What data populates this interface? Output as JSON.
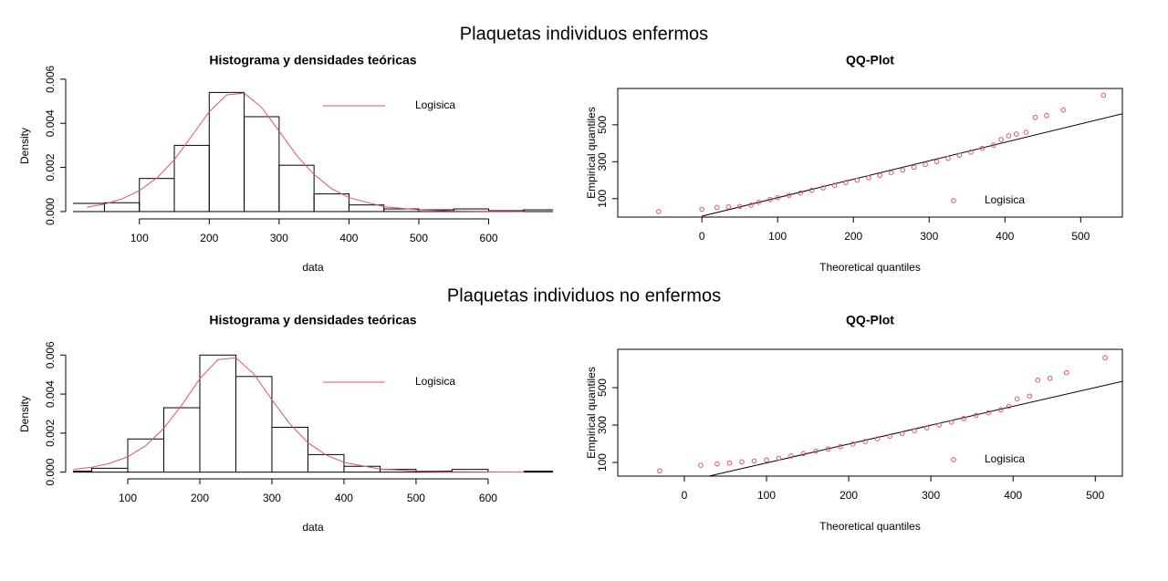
{
  "titles": [
    "Plaquetas individuos enfermos",
    "Plaquetas individuos no enfermos"
  ],
  "chart_data": [
    {
      "type": "histogram",
      "title": "Histograma y densidades teóricas",
      "x_label": "data",
      "y_label": "Density",
      "bins": [
        0,
        50,
        100,
        150,
        200,
        250,
        300,
        350,
        400,
        450,
        500,
        550,
        600,
        650,
        700
      ],
      "values": [
        0.00037,
        0.0004,
        0.0015,
        0.003,
        0.0054,
        0.0043,
        0.0021,
        0.0008,
        0.0003,
        0.00012,
        8e-05,
        0.00012,
        4e-05,
        8e-05
      ],
      "curve": {
        "name": "Logisica",
        "color": "#DF536B",
        "x": [
          25,
          50,
          75,
          100,
          125,
          150,
          175,
          200,
          225,
          250,
          275,
          300,
          325,
          350,
          375,
          400,
          450,
          500,
          550,
          600,
          650
        ],
        "y": [
          0.0002,
          0.00034,
          0.00057,
          0.00095,
          0.00152,
          0.00235,
          0.00343,
          0.00452,
          0.00529,
          0.00537,
          0.00472,
          0.00365,
          0.00255,
          0.00168,
          0.00104,
          0.00063,
          0.00022,
          7.6e-05,
          2.6e-05,
          9e-06,
          3e-06
        ]
      },
      "xlim": [
        5,
        692
      ],
      "xticks": [
        100,
        200,
        300,
        400,
        500,
        600
      ],
      "ylim": [
        -0.00025,
        0.0062
      ],
      "yticks": [
        {
          "value": 0,
          "label": "0.000"
        },
        {
          "value": 0.002,
          "label": "0.002"
        },
        {
          "value": 0.004,
          "label": "0.004"
        },
        {
          "value": 0.006,
          "label": "0.006"
        }
      ]
    },
    {
      "type": "qq",
      "title": "QQ-Plot",
      "x_label": "Theoretical quantiles",
      "y_label": "Empirical quantiles",
      "series": [
        {
          "name": "Logisica",
          "color": "#DF536B",
          "x": [
            -57,
            0,
            20,
            35,
            50,
            65,
            75,
            90,
            100,
            115,
            130,
            145,
            160,
            175,
            190,
            205,
            220,
            235,
            250,
            265,
            280,
            295,
            310,
            325,
            340,
            355,
            370,
            385,
            395,
            405,
            415,
            428,
            440,
            455,
            477,
            530
          ],
          "values": [
            30,
            42,
            52,
            55,
            58,
            65,
            80,
            95,
            105,
            118,
            130,
            145,
            158,
            172,
            187,
            200,
            213,
            226,
            240,
            255,
            270,
            285,
            300,
            318,
            335,
            352,
            372,
            390,
            420,
            440,
            450,
            460,
            540,
            550,
            580,
            660
          ]
        }
      ],
      "line": {
        "x": [
          0,
          555
        ],
        "y": [
          5,
          560
        ]
      },
      "xlim": [
        -111,
        555
      ],
      "xticks": [
        0,
        100,
        200,
        300,
        400,
        500
      ],
      "ylim": [
        0,
        697
      ],
      "yticks": [
        100,
        300,
        500
      ]
    },
    {
      "type": "histogram",
      "title": "Histograma y densidades teóricas",
      "x_label": "data",
      "y_label": "Density",
      "bins": [
        0,
        50,
        100,
        150,
        200,
        250,
        300,
        350,
        400,
        450,
        500,
        550,
        600,
        650,
        700
      ],
      "values": [
        5e-05,
        0.0002,
        0.0017,
        0.0033,
        0.006,
        0.0049,
        0.0023,
        0.0009,
        0.0003,
        0.00014,
        5e-05,
        0.00014,
        0,
        5e-05
      ],
      "curve": {
        "name": "Logisica",
        "color": "#DF536B",
        "x": [
          25,
          50,
          75,
          100,
          125,
          150,
          175,
          200,
          225,
          250,
          275,
          300,
          325,
          350,
          375,
          400,
          450,
          500,
          550,
          600,
          650
        ],
        "y": [
          0.00014,
          0.00025,
          0.00045,
          0.00079,
          0.00136,
          0.00225,
          0.00344,
          0.00479,
          0.00576,
          0.00586,
          0.00503,
          0.00371,
          0.00247,
          0.00151,
          0.00088,
          0.0005,
          0.00016,
          5e-05,
          1.5e-05,
          5e-06,
          2e-06
        ]
      },
      "xlim": [
        24,
        690
      ],
      "xticks": [
        100,
        200,
        300,
        400,
        500,
        600
      ],
      "ylim": [
        -0.00025,
        0.0062
      ],
      "yticks": [
        {
          "value": 0,
          "label": "0.000"
        },
        {
          "value": 0.002,
          "label": "0.002"
        },
        {
          "value": 0.004,
          "label": "0.004"
        },
        {
          "value": 0.006,
          "label": "0.006"
        }
      ]
    },
    {
      "type": "qq",
      "title": "QQ-Plot",
      "x_label": "Theoretical quantiles",
      "y_label": "Empirical quantiles",
      "series": [
        {
          "name": "Logisica",
          "color": "#DF536B",
          "x": [
            -30,
            20,
            40,
            55,
            70,
            85,
            100,
            115,
            130,
            145,
            160,
            175,
            190,
            205,
            220,
            235,
            250,
            265,
            280,
            295,
            310,
            325,
            340,
            355,
            370,
            385,
            395,
            405,
            420,
            430,
            445,
            465,
            512
          ],
          "values": [
            55,
            85,
            92,
            97,
            103,
            108,
            113,
            122,
            135,
            148,
            160,
            172,
            185,
            198,
            212,
            226,
            240,
            255,
            270,
            285,
            300,
            315,
            335,
            352,
            365,
            382,
            400,
            440,
            455,
            540,
            550,
            580,
            660
          ]
        }
      ],
      "line": {
        "x": [
          30,
          533
        ],
        "y": [
          27,
          534
        ]
      },
      "xlim": [
        -81,
        533
      ],
      "xticks": [
        0,
        100,
        200,
        300,
        400,
        500
      ],
      "ylim": [
        27,
        705
      ],
      "yticks": [
        100,
        300,
        500
      ]
    }
  ]
}
